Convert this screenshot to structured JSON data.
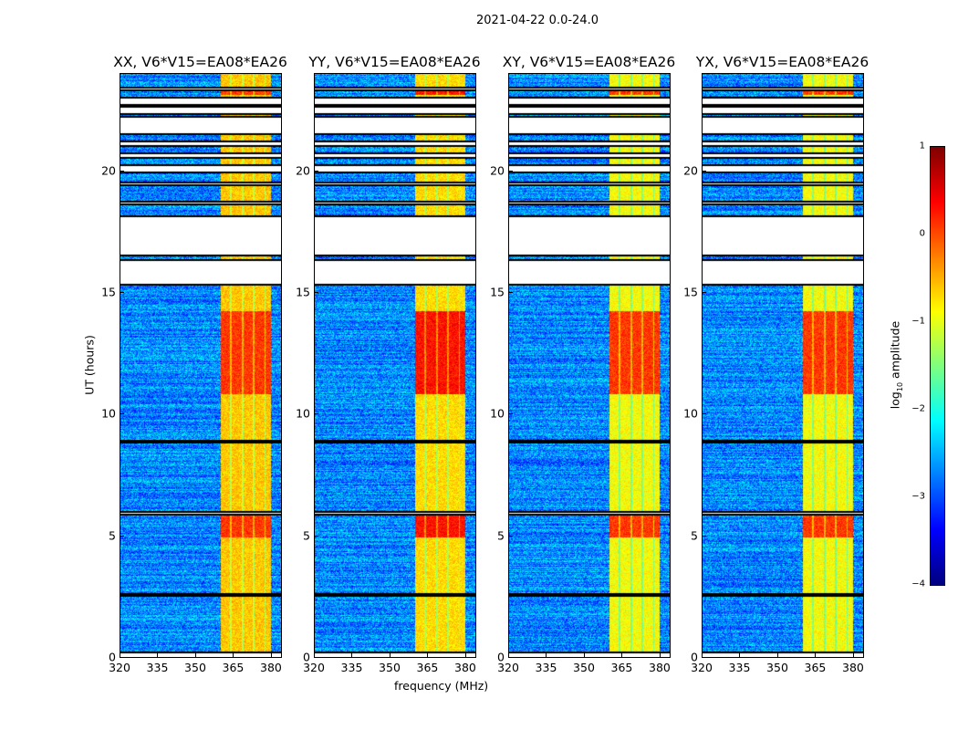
{
  "suptitle": "2021-04-22 0.0-24.0",
  "chart_data": {
    "type": "heatmap",
    "panels": [
      {
        "title": "XX, V6*V15=EA08*EA26",
        "band_level": -0.6,
        "hot_level": 0.1
      },
      {
        "title": "YY, V6*V15=EA08*EA26",
        "band_level": -0.7,
        "hot_level": 0.3
      },
      {
        "title": "XY, V6*V15=EA08*EA26",
        "band_level": -0.9,
        "hot_level": 0.1
      },
      {
        "title": "YX, V6*V15=EA08*EA26",
        "band_level": -0.9,
        "hot_level": 0.1
      }
    ],
    "xlabel": "frequency (MHz)",
    "ylabel": "UT (hours)",
    "xlim": [
      320,
      384
    ],
    "ylim": [
      0,
      24
    ],
    "xticks": [
      "320",
      "335",
      "350",
      "365",
      "380"
    ],
    "xtick_values": [
      320,
      335,
      350,
      365,
      380
    ],
    "yticks": [
      "0",
      "5",
      "10",
      "15",
      "20"
    ],
    "ytick_values": [
      0,
      5,
      10,
      15,
      20
    ],
    "background_level": -2.7,
    "bright_band_mhz": [
      360,
      380
    ],
    "data_segments_hours": [
      [
        0.2,
        2.5
      ],
      [
        2.6,
        5.85
      ],
      [
        5.95,
        8.8
      ],
      [
        8.9,
        15.3
      ],
      [
        16.3,
        16.5
      ],
      [
        18.1,
        18.6
      ],
      [
        18.7,
        19.4
      ],
      [
        19.5,
        19.9
      ],
      [
        20.2,
        20.5
      ],
      [
        20.7,
        21.0
      ],
      [
        21.2,
        21.5
      ],
      [
        22.2,
        22.3
      ],
      [
        22.6,
        22.7
      ],
      [
        23.0,
        23.3
      ],
      [
        23.4,
        24.0
      ]
    ],
    "hot_segments_hours": [
      [
        10.8,
        14.2
      ],
      [
        4.9,
        5.8
      ],
      [
        23.1,
        23.3
      ]
    ],
    "colorbar": {
      "label_main": "log",
      "label_sub": "10",
      "label_rest": " amplitude",
      "range": [
        -4,
        1
      ],
      "ticks": [
        "1",
        "0",
        "−1",
        "−2",
        "−3",
        "−4"
      ],
      "tick_values": [
        1,
        0,
        -1,
        -2,
        -3,
        -4
      ],
      "colormap": "jet"
    }
  }
}
